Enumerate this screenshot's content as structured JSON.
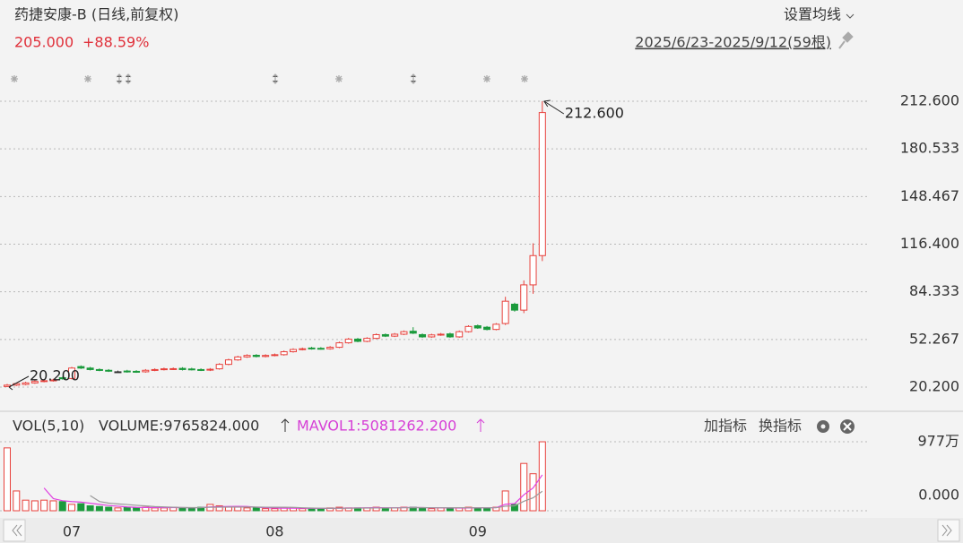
{
  "header": {
    "title": "药捷安康-B (日线,前复权)",
    "price": "205.000",
    "change": "+88.59%",
    "setting": "设置均线",
    "range": "2025/6/23-2025/9/12(59根)"
  },
  "indicator_bar": {
    "title": "VOL(5,10)",
    "volume": "VOLUME:9765824.000",
    "mavol1": "MAVOL1:5081262.200",
    "add": "加指标",
    "switch": "换指标"
  },
  "chart_data": [
    {
      "type": "candlestick",
      "up_color": "#e8413c",
      "down_color": "#1b9a3c",
      "grid": true,
      "categories": [
        null,
        null,
        null,
        null,
        null,
        null,
        null,
        "07",
        null,
        null,
        null,
        null,
        null,
        null,
        null,
        null,
        null,
        null,
        null,
        null,
        null,
        null,
        null,
        null,
        null,
        null,
        null,
        null,
        null,
        "08",
        null,
        null,
        null,
        null,
        null,
        null,
        null,
        null,
        null,
        null,
        null,
        null,
        null,
        null,
        null,
        null,
        null,
        null,
        null,
        null,
        null,
        "09",
        null,
        null,
        null,
        null,
        null,
        null,
        null
      ],
      "open": [
        20.6,
        21.5,
        22,
        23,
        24,
        24.5,
        26.5,
        26,
        34,
        33,
        32,
        31.5,
        30.5,
        31,
        30.8,
        30.5,
        31.5,
        32,
        32.3,
        32.8,
        32.4,
        32,
        31.6,
        32.5,
        35.5,
        38.5,
        40.5,
        41.6,
        40.8,
        41.5,
        42,
        44,
        45.5,
        46.5,
        46.3,
        46,
        47,
        50,
        52.5,
        51,
        53,
        55.5,
        54.5,
        55.8,
        57.8,
        55.5,
        54,
        55.3,
        56,
        54,
        57.5,
        61.5,
        60.5,
        59,
        63,
        76,
        72,
        89,
        108.7
      ],
      "high": [
        22.3,
        23.2,
        23.8,
        24.8,
        25.3,
        25.8,
        27.2,
        33.8,
        34.8,
        33.8,
        32.8,
        32.3,
        31.3,
        31.8,
        31.6,
        32.3,
        32.8,
        33.3,
        33.4,
        33.6,
        33.2,
        32.8,
        33,
        36.3,
        39.3,
        41.3,
        42.3,
        42.4,
        42.3,
        42.8,
        44.8,
        46.3,
        46.8,
        47.3,
        47.1,
        47.8,
        50.8,
        53.3,
        53.3,
        53.8,
        56.3,
        56.3,
        56.6,
        58.3,
        60.5,
        56.3,
        56.1,
        56.6,
        56.8,
        58.3,
        61.8,
        62.3,
        61.3,
        63.3,
        81,
        77,
        92,
        117,
        212.6
      ],
      "low": [
        20.2,
        20.9,
        21.4,
        22.4,
        23.4,
        23.9,
        25.2,
        25.4,
        32.4,
        31.4,
        30.9,
        30.4,
        29.9,
        29.9,
        29.8,
        29.9,
        30.9,
        31.4,
        31.7,
        31.4,
        31.4,
        31,
        31,
        31.9,
        34.9,
        37.9,
        39.9,
        40.2,
        40.2,
        40.9,
        41.4,
        43.4,
        44.9,
        45.4,
        45.4,
        45.4,
        46.4,
        49.4,
        50.4,
        50.4,
        52.4,
        53.9,
        53.9,
        55.2,
        55.9,
        53.4,
        53.4,
        54.7,
        53.4,
        53.4,
        56.9,
        59.4,
        58.4,
        58.4,
        62,
        71,
        70,
        83,
        105
      ],
      "close": [
        21.5,
        22.5,
        23,
        24,
        24.5,
        25,
        25.8,
        33,
        33,
        32,
        31.5,
        31,
        30.5,
        30.5,
        30.4,
        31.5,
        32,
        32.5,
        32.6,
        32,
        32,
        31.6,
        32.2,
        35.5,
        38.5,
        40.5,
        41.5,
        40.8,
        41.5,
        42,
        44,
        45.5,
        46,
        46.2,
        46,
        47,
        50,
        52.5,
        51,
        53,
        55.5,
        54.5,
        55.8,
        57.5,
        56.5,
        54,
        55.3,
        55.8,
        54,
        57.5,
        61,
        60,
        59,
        62.5,
        78,
        72,
        89,
        108.7,
        205
      ],
      "ylim": [
        20.2,
        212.6
      ],
      "yticks": [
        {
          "value": 20.2,
          "label": "20.200"
        },
        52.267,
        84.333,
        {
          "value": 116.4,
          "label": "116.400"
        },
        148.467,
        180.533,
        {
          "value": 212.6,
          "label": "212.600"
        }
      ],
      "annotations": [
        {
          "label": "212.600",
          "value": 212.6
        },
        {
          "label": "20.200",
          "value": 20.2
        }
      ]
    },
    {
      "type": "bar",
      "grid": true,
      "values": [
        8900000,
        2800000,
        1500000,
        1400000,
        1500000,
        1400000,
        1300000,
        900000,
        1000000,
        700000,
        600000,
        500000,
        400000,
        500000,
        400000,
        500000,
        400000,
        400000,
        500000,
        400000,
        400000,
        500000,
        900000,
        700000,
        500000,
        500000,
        400000,
        400000,
        300000,
        300000,
        400000,
        400000,
        300000,
        300000,
        300000,
        400000,
        500000,
        400000,
        400000,
        400000,
        500000,
        400000,
        400000,
        500000,
        500000,
        400000,
        300000,
        400000,
        400000,
        400000,
        500000,
        400000,
        400000,
        500000,
        2800000,
        900000,
        6700000,
        5240487,
        9765824
      ],
      "ma_colors": [
        "#e040e0",
        "#9a9a9a"
      ],
      "ylim": [
        0,
        9770000
      ],
      "yticks": [
        {
          "value": 0,
          "label": "0.000"
        },
        {
          "value": 9770000,
          "label": "977万"
        }
      ]
    }
  ]
}
